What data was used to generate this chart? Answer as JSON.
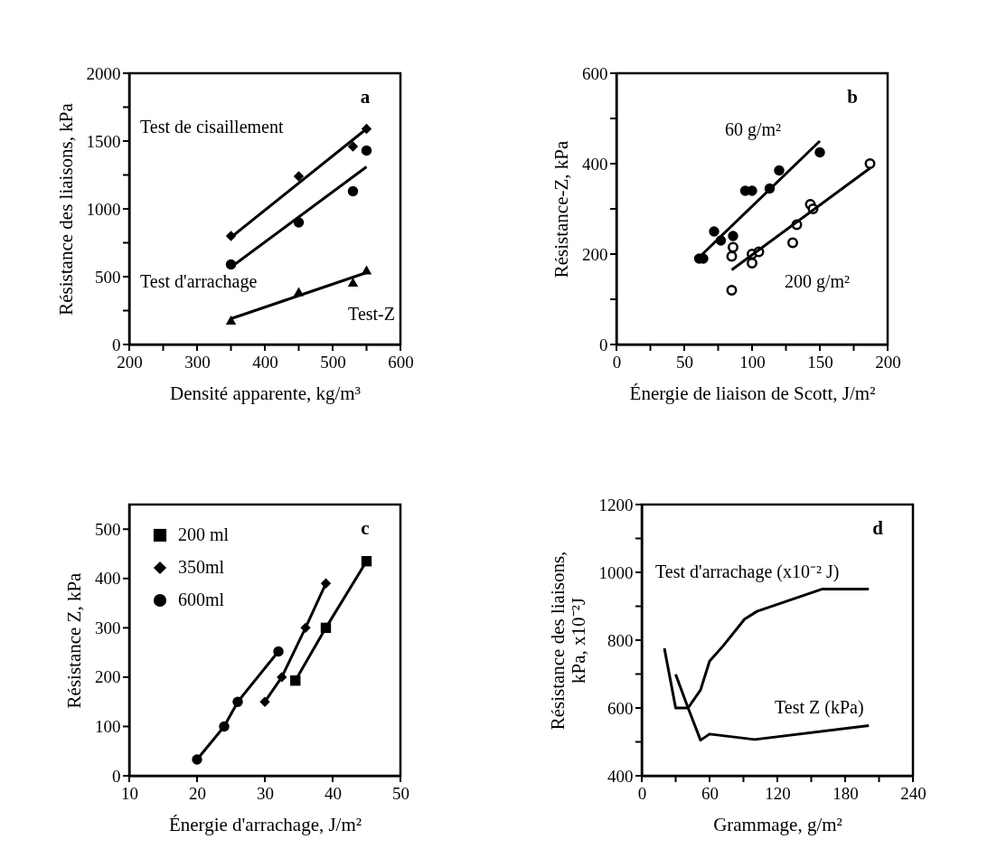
{
  "chart_data": [
    {
      "type": "scatter",
      "xlabel": "Densité apparente, kg/m³",
      "ylabel": "Résistance des liaisons, kPa",
      "annotations": [
        "a"
      ],
      "xlim": [
        200,
        600
      ],
      "xticks": [
        200,
        {
          "value": 250,
          "label": null
        },
        300,
        {
          "value": 350,
          "label": null
        },
        400,
        {
          "value": 450,
          "label": null
        },
        500,
        {
          "value": 550,
          "label": null
        },
        600
      ],
      "ylim": [
        0,
        2000
      ],
      "yticks": [
        0,
        {
          "value": 250,
          "label": null
        },
        500,
        {
          "value": 750,
          "label": null
        },
        1000,
        {
          "value": 1250,
          "label": null
        },
        1500,
        {
          "value": 1750,
          "label": null
        },
        2000
      ],
      "series": [
        {
          "name": "Test de cisaillement",
          "color": "#000000",
          "marker": "diamond",
          "x": [
            350,
            450,
            530,
            550
          ],
          "values": [
            800,
            1240,
            1460,
            1590
          ]
        },
        {
          "name": "Test d'arrachage",
          "color": "#000000",
          "marker": "circle",
          "x": [
            350,
            450,
            530,
            550
          ],
          "values": [
            590,
            900,
            1130,
            1430
          ]
        },
        {
          "name": "Test-Z",
          "color": "#000000",
          "marker": "triangle",
          "x": [
            350,
            450,
            530,
            550
          ],
          "values": [
            180,
            390,
            460,
            550
          ]
        },
        {
          "type": "line",
          "color": "#000000",
          "marker": "none",
          "x": [
            350,
            550
          ],
          "values": [
            790,
            1590
          ]
        },
        {
          "type": "line",
          "color": "#000000",
          "marker": "none",
          "x": [
            350,
            550
          ],
          "values": [
            570,
            1310
          ]
        },
        {
          "type": "line",
          "color": "#000000",
          "marker": "none",
          "x": [
            350,
            550
          ],
          "values": [
            190,
            530
          ]
        }
      ]
    },
    {
      "type": "scatter",
      "xlabel": "Énergie de liaison de Scott, J/m²",
      "ylabel": "Résistance-Z, kPa",
      "annotations": [
        "b"
      ],
      "xlim": [
        0,
        200
      ],
      "xticks": [
        0,
        {
          "value": 25,
          "label": null
        },
        50,
        {
          "value": 75,
          "label": null
        },
        100,
        {
          "value": 125,
          "label": null
        },
        150,
        {
          "value": 175,
          "label": null
        },
        200
      ],
      "ylim": [
        0,
        600
      ],
      "yticks": [
        0,
        {
          "value": 100,
          "label": null
        },
        200,
        {
          "value": 300,
          "label": null
        },
        400,
        {
          "value": 500,
          "label": null
        },
        600
      ],
      "series": [
        {
          "name": "60 g/m²",
          "color": "#000000",
          "marker": "circle",
          "x": [
            61,
            64,
            72,
            77,
            86,
            95,
            100,
            113,
            120,
            150
          ],
          "values": [
            190,
            190,
            250,
            230,
            240,
            340,
            340,
            345,
            385,
            425
          ]
        },
        {
          "name": "200 g/m²",
          "color": "#000000",
          "marker": "circle",
          "x": [
            85,
            86,
            85,
            100,
            100,
            105,
            130,
            133,
            143,
            145,
            187
          ],
          "values": [
            195,
            215,
            120,
            200,
            180,
            205,
            225,
            265,
            310,
            300,
            400
          ]
        },
        {
          "type": "line",
          "color": "#000000",
          "marker": "none",
          "x": [
            60,
            150
          ],
          "values": [
            190,
            450
          ]
        },
        {
          "type": "line",
          "color": "#000000",
          "marker": "none",
          "x": [
            85,
            187
          ],
          "values": [
            165,
            390
          ]
        }
      ]
    },
    {
      "type": "line",
      "xlabel": "Énergie d'arrachage, J/m²",
      "ylabel": "Résistance Z, kPa",
      "annotations": [
        "c"
      ],
      "legend": "top left",
      "xlim": [
        10,
        50
      ],
      "xticks": [
        10,
        20,
        30,
        40,
        50
      ],
      "ylim": [
        0,
        550
      ],
      "yticks": [
        0,
        100,
        200,
        300,
        400,
        500
      ],
      "series": [
        {
          "name": "200 ml",
          "color": "#000000",
          "marker": "square",
          "x": [
            34.5,
            39,
            45
          ],
          "values": [
            193,
            300,
            435
          ]
        },
        {
          "name": "350ml",
          "color": "#000000",
          "marker": "diamond",
          "x": [
            30,
            32.5,
            36,
            39
          ],
          "values": [
            150,
            200,
            300,
            390
          ]
        },
        {
          "name": "600ml",
          "color": "#000000",
          "marker": "circle",
          "x": [
            20,
            24,
            26,
            32
          ],
          "values": [
            33,
            100,
            150,
            252
          ]
        }
      ]
    },
    {
      "type": "line",
      "xlabel": "Grammage, g/m²",
      "ylabel": "Résistance des liaisons,\nkPa, x10⁻²J",
      "annotations": [
        "d"
      ],
      "xlim": [
        0,
        240
      ],
      "xticks": [
        0,
        {
          "value": 30,
          "label": null
        },
        60,
        {
          "value": 90,
          "label": null
        },
        120,
        {
          "value": 150,
          "label": null
        },
        180,
        {
          "value": 210,
          "label": null
        },
        240
      ],
      "ylim": [
        400,
        1200
      ],
      "yticks": [
        400,
        {
          "value": 500,
          "label": null
        },
        600,
        {
          "value": 700,
          "label": null
        },
        800,
        {
          "value": 900,
          "label": null
        },
        1000,
        {
          "value": 1100,
          "label": null
        },
        1200
      ],
      "series": [
        {
          "name": "Test d'arrachage (x10⁻² J)",
          "color": "#000000",
          "x": [
            20,
            30,
            41,
            52,
            60,
            72,
            91,
            102,
            160,
            201
          ],
          "values": [
            776,
            600,
            600,
            653,
            738,
            783,
            862,
            885,
            951,
            951
          ]
        },
        {
          "name": "Test Z (kPa)",
          "color": "#000000",
          "x": [
            30,
            41,
            52,
            60,
            100,
            201
          ],
          "values": [
            699,
            600,
            505,
            523,
            507,
            548
          ]
        }
      ]
    }
  ]
}
